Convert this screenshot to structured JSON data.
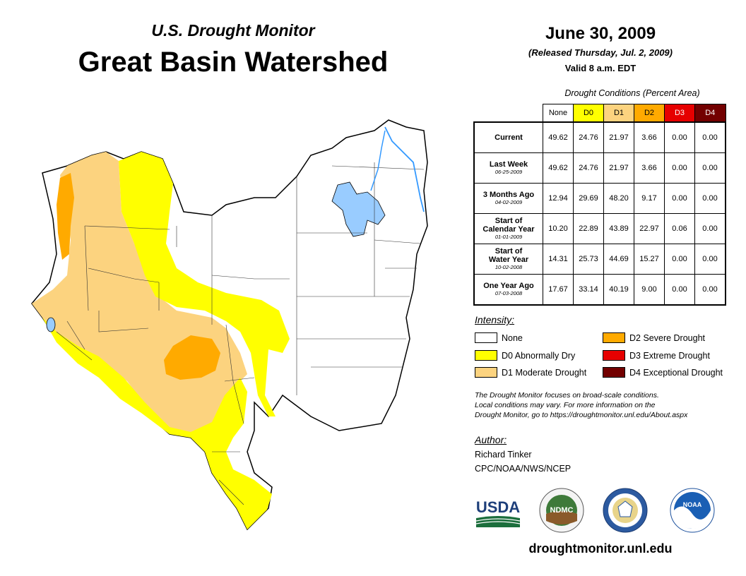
{
  "header": {
    "subtitle": "U.S. Drought Monitor",
    "title": "Great Basin Watershed",
    "date": "June 30, 2009",
    "released": "(Released Thursday, Jul. 2, 2009)",
    "valid": "Valid 8 a.m. EDT"
  },
  "table": {
    "caption": "Drought Conditions (Percent Area)",
    "columns": [
      "None",
      "D0",
      "D1",
      "D2",
      "D3",
      "D4"
    ],
    "column_colors": [
      "#ffffff",
      "#ffff00",
      "#fcd37f",
      "#ffaa00",
      "#e60000",
      "#730000"
    ],
    "rows": [
      {
        "label": "Current",
        "label2": "",
        "date": "",
        "values": [
          "49.62",
          "24.76",
          "21.97",
          "3.66",
          "0.00",
          "0.00"
        ]
      },
      {
        "label": "Last Week",
        "label2": "",
        "date": "06-25-2009",
        "values": [
          "49.62",
          "24.76",
          "21.97",
          "3.66",
          "0.00",
          "0.00"
        ]
      },
      {
        "label": "3 Months Ago",
        "label2": "",
        "date": "04-02-2009",
        "values": [
          "12.94",
          "29.69",
          "48.20",
          "9.17",
          "0.00",
          "0.00"
        ]
      },
      {
        "label": "Start of",
        "label2": "Calendar Year",
        "date": "01-01-2009",
        "values": [
          "10.20",
          "22.89",
          "43.89",
          "22.97",
          "0.06",
          "0.00"
        ]
      },
      {
        "label": "Start of",
        "label2": "Water Year",
        "date": "10-02-2008",
        "values": [
          "14.31",
          "25.73",
          "44.69",
          "15.27",
          "0.00",
          "0.00"
        ]
      },
      {
        "label": "One Year Ago",
        "label2": "",
        "date": "07-03-2008",
        "values": [
          "17.67",
          "33.14",
          "40.19",
          "9.00",
          "0.00",
          "0.00"
        ]
      }
    ]
  },
  "legend": {
    "title": "Intensity:",
    "items": [
      {
        "label": "None",
        "color": "#ffffff"
      },
      {
        "label": "D0 Abnormally Dry",
        "color": "#ffff00"
      },
      {
        "label": "D1 Moderate Drought",
        "color": "#fcd37f"
      },
      {
        "label": "D2 Severe Drought",
        "color": "#ffaa00"
      },
      {
        "label": "D3 Extreme Drought",
        "color": "#e60000"
      },
      {
        "label": "D4 Exceptional Drought",
        "color": "#730000"
      }
    ]
  },
  "note": {
    "line1": "The Drought Monitor focuses on broad-scale conditions.",
    "line2": "Local conditions may vary. For more information on the",
    "line3": "Drought Monitor, go to https://droughtmonitor.unl.edu/About.aspx"
  },
  "author": {
    "title": "Author:",
    "name": "Richard Tinker",
    "org": "CPC/NOAA/NWS/NCEP"
  },
  "logos": {
    "usda": "USDA",
    "ndmc": "NDMC",
    "noaa": "NOAA"
  },
  "website": "droughtmonitor.unl.edu",
  "map": {
    "colors": {
      "none": "#ffffff",
      "d0": "#ffff00",
      "d1": "#fcd37f",
      "d2": "#ffaa00",
      "water": "#99ccff",
      "river": "#3399ff"
    }
  }
}
